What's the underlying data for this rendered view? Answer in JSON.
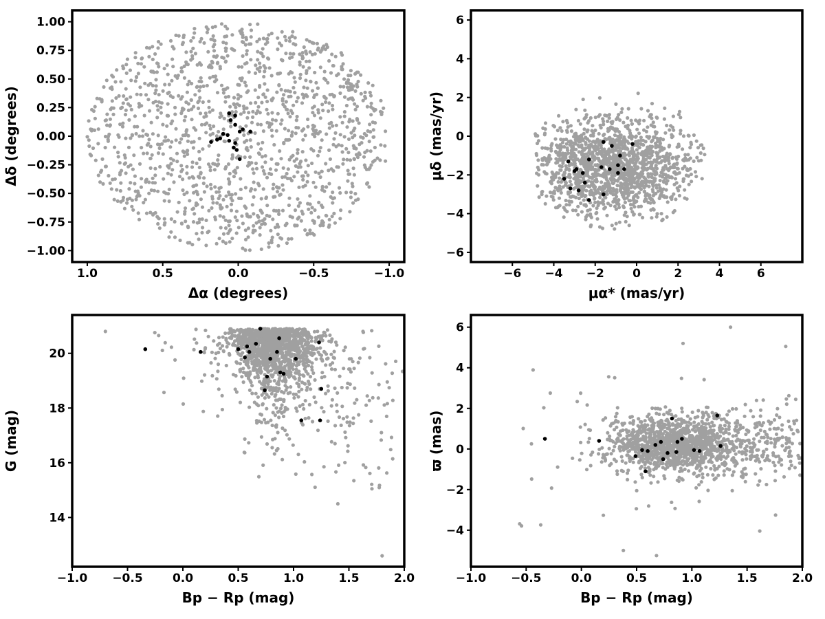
{
  "chart_data": [
    {
      "type": "scatter",
      "panel": "top-left",
      "xlabel": "Δα (degrees)",
      "ylabel": "Δδ (degrees)",
      "xlim": [
        1.1,
        -1.1
      ],
      "ylim": [
        -1.1,
        1.1
      ],
      "x_reversed": true,
      "xticks": [
        "1.0",
        "0.5",
        "0.0",
        "−0.5",
        "−1.0"
      ],
      "xtick_values": [
        1.0,
        0.5,
        0.0,
        -0.5,
        -1.0
      ],
      "yticks": [
        "1.00",
        "0.75",
        "0.50",
        "0.25",
        "0.00",
        "−0.25",
        "−0.50",
        "−0.75",
        "−1.00"
      ],
      "ytick_values": [
        1.0,
        0.75,
        0.5,
        0.25,
        0.0,
        -0.25,
        -0.5,
        -0.75,
        -1.0
      ],
      "grid": false,
      "background_series": {
        "color": "#a0a0a0",
        "distribution": "uniform disk",
        "center": [
          0,
          0
        ],
        "radius": 1.0,
        "count": 1400
      },
      "members": {
        "color": "#000000",
        "points": [
          [
            0.06,
            0.2
          ],
          [
            0.02,
            0.18
          ],
          [
            0.05,
            0.14
          ],
          [
            0.02,
            0.1
          ],
          [
            -0.03,
            0.06
          ],
          [
            -0.01,
            0.04
          ],
          [
            0.1,
            0.02
          ],
          [
            0.07,
            0.01
          ],
          [
            0.12,
            -0.02
          ],
          [
            0.06,
            -0.04
          ],
          [
            0.14,
            -0.03
          ],
          [
            -0.08,
            0.04
          ],
          [
            0.02,
            -0.06
          ],
          [
            0.03,
            -0.1
          ],
          [
            0.01,
            -0.12
          ],
          [
            0.18,
            -0.05
          ],
          [
            -0.01,
            -0.2
          ]
        ]
      }
    },
    {
      "type": "scatter",
      "panel": "top-right",
      "xlabel": "μα* (mas/yr)",
      "ylabel": "μδ (mas/yr)",
      "xlim": [
        -8,
        8
      ],
      "ylim": [
        -6.5,
        6.5
      ],
      "xticks": [
        "−6",
        "−4",
        "−2",
        "0",
        "2",
        "4",
        "6"
      ],
      "xtick_values": [
        -6,
        -4,
        -2,
        0,
        2,
        4,
        6
      ],
      "yticks": [
        "6",
        "4",
        "2",
        "0",
        "−2",
        "−4",
        "−6"
      ],
      "ytick_values": [
        6,
        4,
        2,
        0,
        -2,
        -4,
        -6
      ],
      "grid": false,
      "background_series": {
        "color": "#a0a0a0",
        "distribution": "cloud",
        "center": [
          -1.2,
          -1.6
        ],
        "spread": [
          2.0,
          1.4
        ],
        "x_range": [
          -5,
          4.8
        ],
        "y_range": [
          -5,
          4.5
        ],
        "count": 1500
      },
      "members": {
        "color": "#000000",
        "points": [
          [
            -1.6,
            -0.3
          ],
          [
            -1.2,
            -0.5
          ],
          [
            -0.2,
            -0.4
          ],
          [
            -0.8,
            -1.0
          ],
          [
            -2.3,
            -1.2
          ],
          [
            -3.3,
            -1.3
          ],
          [
            -2.9,
            -1.7
          ],
          [
            -3.0,
            -1.8
          ],
          [
            -2.6,
            -1.9
          ],
          [
            -1.7,
            -1.6
          ],
          [
            -1.3,
            -1.7
          ],
          [
            -0.9,
            -1.5
          ],
          [
            -0.6,
            -1.7
          ],
          [
            -0.9,
            -1.9
          ],
          [
            -3.5,
            -2.2
          ],
          [
            -3.2,
            -2.7
          ],
          [
            -2.8,
            -2.8
          ],
          [
            -2.5,
            -2.4
          ],
          [
            -1.6,
            -3.0
          ],
          [
            -2.3,
            -3.3
          ]
        ]
      }
    },
    {
      "type": "scatter",
      "panel": "bottom-left",
      "xlabel": "Bp − Rp (mag)",
      "ylabel": "G (mag)",
      "xlim": [
        -1.0,
        2.0
      ],
      "ylim": [
        12.2,
        21.4
      ],
      "xticks": [
        "−1.0",
        "−0.5",
        "0.0",
        "0.5",
        "1.0",
        "1.5",
        "2.0"
      ],
      "xtick_values": [
        -1.0,
        -0.5,
        0.0,
        0.5,
        1.0,
        1.5,
        2.0
      ],
      "yticks": [
        "20",
        "18",
        "16",
        "14"
      ],
      "ytick_values": [
        20,
        18,
        16,
        14
      ],
      "grid": false,
      "background_series": {
        "color": "#a0a0a0",
        "distribution": "colour-magnitude sequence",
        "center": [
          0.75,
          20.2
        ],
        "count": 1500
      },
      "members": {
        "color": "#000000",
        "points": [
          [
            -0.34,
            20.15
          ],
          [
            0.16,
            20.05
          ],
          [
            0.5,
            20.15
          ],
          [
            0.56,
            19.85
          ],
          [
            0.58,
            20.25
          ],
          [
            0.6,
            20.05
          ],
          [
            0.66,
            20.35
          ],
          [
            0.7,
            20.9
          ],
          [
            0.74,
            18.65
          ],
          [
            0.76,
            19.15
          ],
          [
            0.79,
            19.8
          ],
          [
            0.85,
            20.05
          ],
          [
            0.87,
            20.55
          ],
          [
            0.88,
            19.3
          ],
          [
            0.91,
            19.25
          ],
          [
            1.02,
            19.8
          ],
          [
            1.07,
            17.55
          ],
          [
            1.23,
            20.4
          ],
          [
            1.25,
            18.7
          ],
          [
            1.24,
            17.55
          ]
        ]
      }
    },
    {
      "type": "scatter",
      "panel": "bottom-right",
      "xlabel": "Bp − Rp (mag)",
      "ylabel": "ϖ (mas)",
      "xlim": [
        -1.0,
        2.0
      ],
      "ylim": [
        -5.8,
        6.6
      ],
      "xticks": [
        "−1.0",
        "−0.5",
        "0.0",
        "0.5",
        "1.0",
        "1.5",
        "2.0"
      ],
      "xtick_values": [
        -1.0,
        -0.5,
        0.0,
        0.5,
        1.0,
        1.5,
        2.0
      ],
      "yticks": [
        "6",
        "4",
        "2",
        "0",
        "−2",
        "−4"
      ],
      "ytick_values": [
        6,
        4,
        2,
        0,
        -2,
        -4
      ],
      "grid": false,
      "background_series": {
        "color": "#a0a0a0",
        "distribution": "cloud",
        "center": [
          0.8,
          0.2
        ],
        "count": 1500
      },
      "members": {
        "color": "#000000",
        "points": [
          [
            -0.33,
            0.5
          ],
          [
            0.16,
            0.4
          ],
          [
            0.49,
            -0.35
          ],
          [
            0.55,
            -0.05
          ],
          [
            0.58,
            -1.1
          ],
          [
            0.6,
            -0.1
          ],
          [
            0.67,
            0.2
          ],
          [
            0.72,
            0.35
          ],
          [
            0.74,
            -0.5
          ],
          [
            0.78,
            -0.2
          ],
          [
            0.82,
            1.5
          ],
          [
            0.86,
            -0.15
          ],
          [
            0.87,
            0.35
          ],
          [
            0.91,
            0.5
          ],
          [
            1.02,
            -0.05
          ],
          [
            1.07,
            -0.1
          ],
          [
            1.23,
            1.65
          ],
          [
            1.26,
            0.15
          ]
        ]
      }
    }
  ],
  "colors": {
    "background_points": "#a0a0a0",
    "member_points": "#000000",
    "frame": "#000000"
  }
}
